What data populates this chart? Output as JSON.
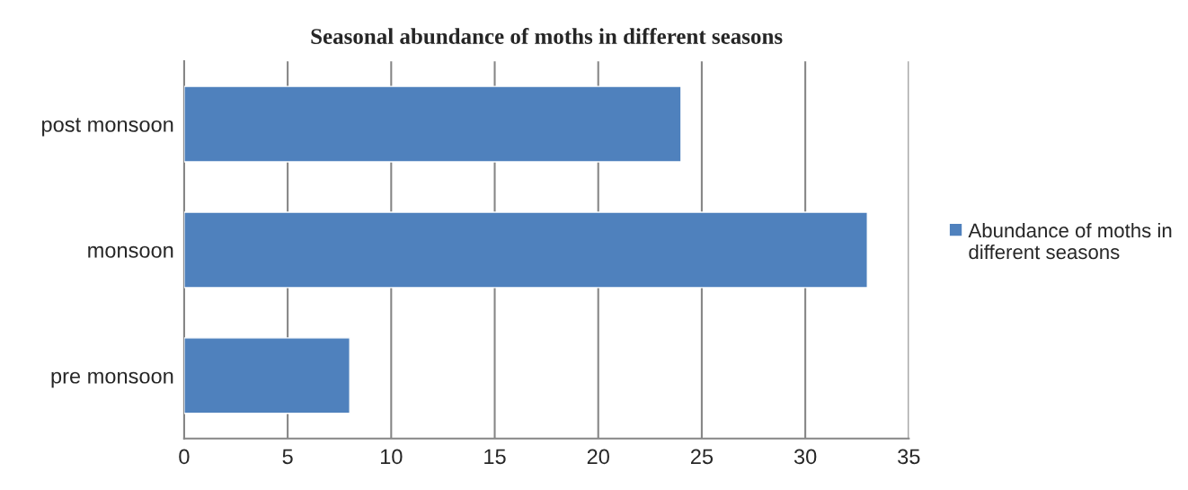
{
  "chart_data": {
    "type": "bar",
    "orientation": "horizontal",
    "title": "Seasonal abundance of moths in different seasons",
    "categories": [
      "post monsoon",
      "monsoon",
      "pre monsoon"
    ],
    "series": [
      {
        "name": "Abundance of moths in different seasons",
        "color": "#4f81bd",
        "values": [
          24,
          33,
          8
        ]
      }
    ],
    "xlim": [
      0,
      35
    ],
    "xticks": [
      0,
      5,
      10,
      15,
      20,
      25,
      30,
      35
    ],
    "grid": "x",
    "legend": "right"
  }
}
